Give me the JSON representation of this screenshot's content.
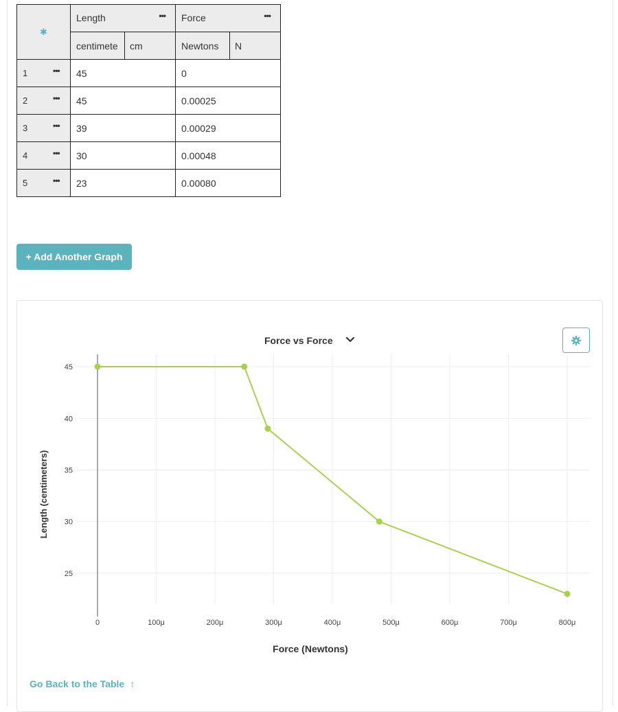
{
  "table": {
    "columns": [
      {
        "name": "Length",
        "unit_name": "centimete",
        "unit_abbr": "cm"
      },
      {
        "name": "Force",
        "unit_name": "Newtons",
        "unit_abbr": "N"
      }
    ],
    "rows": [
      {
        "num": "1",
        "length": "45",
        "force": "0"
      },
      {
        "num": "2",
        "length": "45",
        "force": "0.00025"
      },
      {
        "num": "3",
        "length": "39",
        "force": "0.00029"
      },
      {
        "num": "4",
        "length": "30",
        "force": "0.00048"
      },
      {
        "num": "5",
        "length": "23",
        "force": "0.00080"
      }
    ]
  },
  "add_graph_label": "+ Add Another Graph",
  "graph": {
    "title": "Force vs Force",
    "back_link": "Go Back to the Table",
    "back_arrow": "↑"
  },
  "chart_data": {
    "type": "line",
    "xlabel": "Force (Newtons)",
    "ylabel": "Length (centimeters)",
    "x": [
      0,
      0.00025,
      0.00029,
      0.00048,
      0.0008
    ],
    "y": [
      45,
      45,
      39,
      30,
      23
    ],
    "xlim": [
      0,
      0.0008
    ],
    "ylim": [
      22,
      46.2
    ],
    "x_ticks": [
      0,
      0.0001,
      0.0002,
      0.0003,
      0.0004,
      0.0005,
      0.0006,
      0.0007,
      0.0008
    ],
    "x_tick_labels": [
      "0",
      "100μ",
      "200μ",
      "300μ",
      "400μ",
      "500μ",
      "600μ",
      "700μ",
      "800μ"
    ],
    "y_ticks": [
      25,
      30,
      35,
      40,
      45
    ],
    "y_tick_labels": [
      "25",
      "30",
      "35",
      "40",
      "45"
    ],
    "grid": true,
    "line_color": "#a8d14f",
    "marker_color": "#a8d14f"
  },
  "colors": {
    "accent": "#5bb3bd",
    "header_bg": "#ececec"
  }
}
